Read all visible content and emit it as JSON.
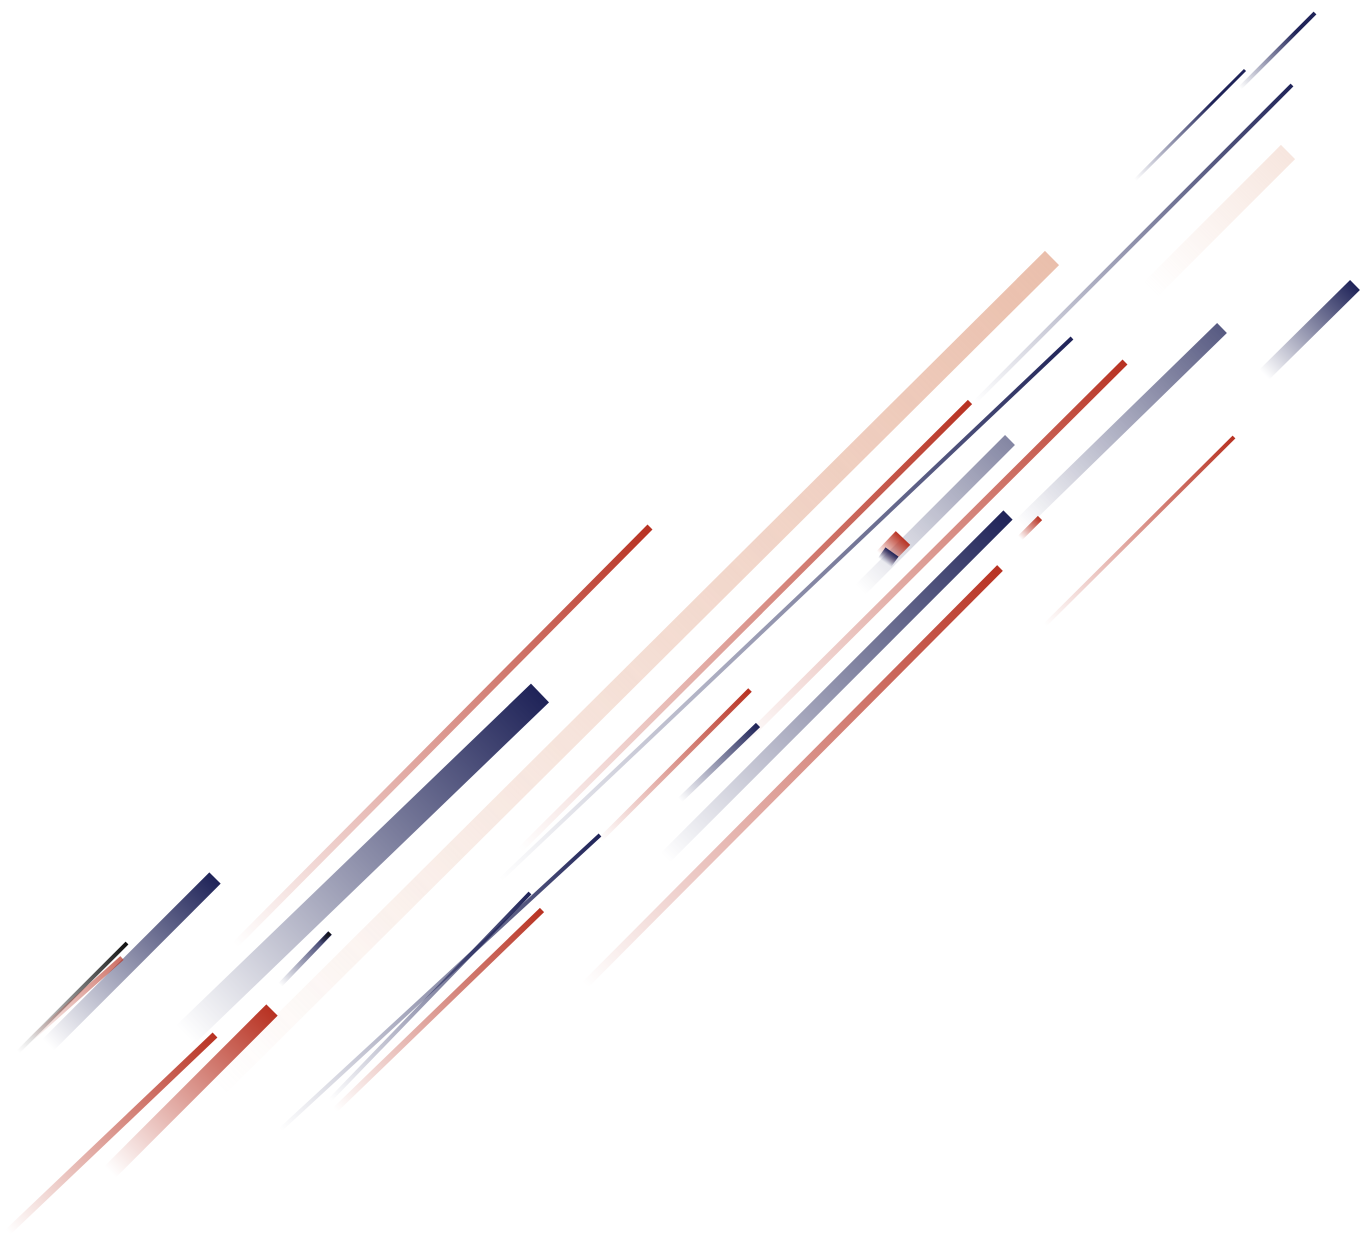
{
  "artwork": {
    "style": "diagonal-speed-streaks",
    "background": "#ffffff",
    "colors": {
      "navy": "#1f2358",
      "red": "#b83222",
      "peach": "#e8b8a3",
      "black": "#111111"
    }
  }
}
